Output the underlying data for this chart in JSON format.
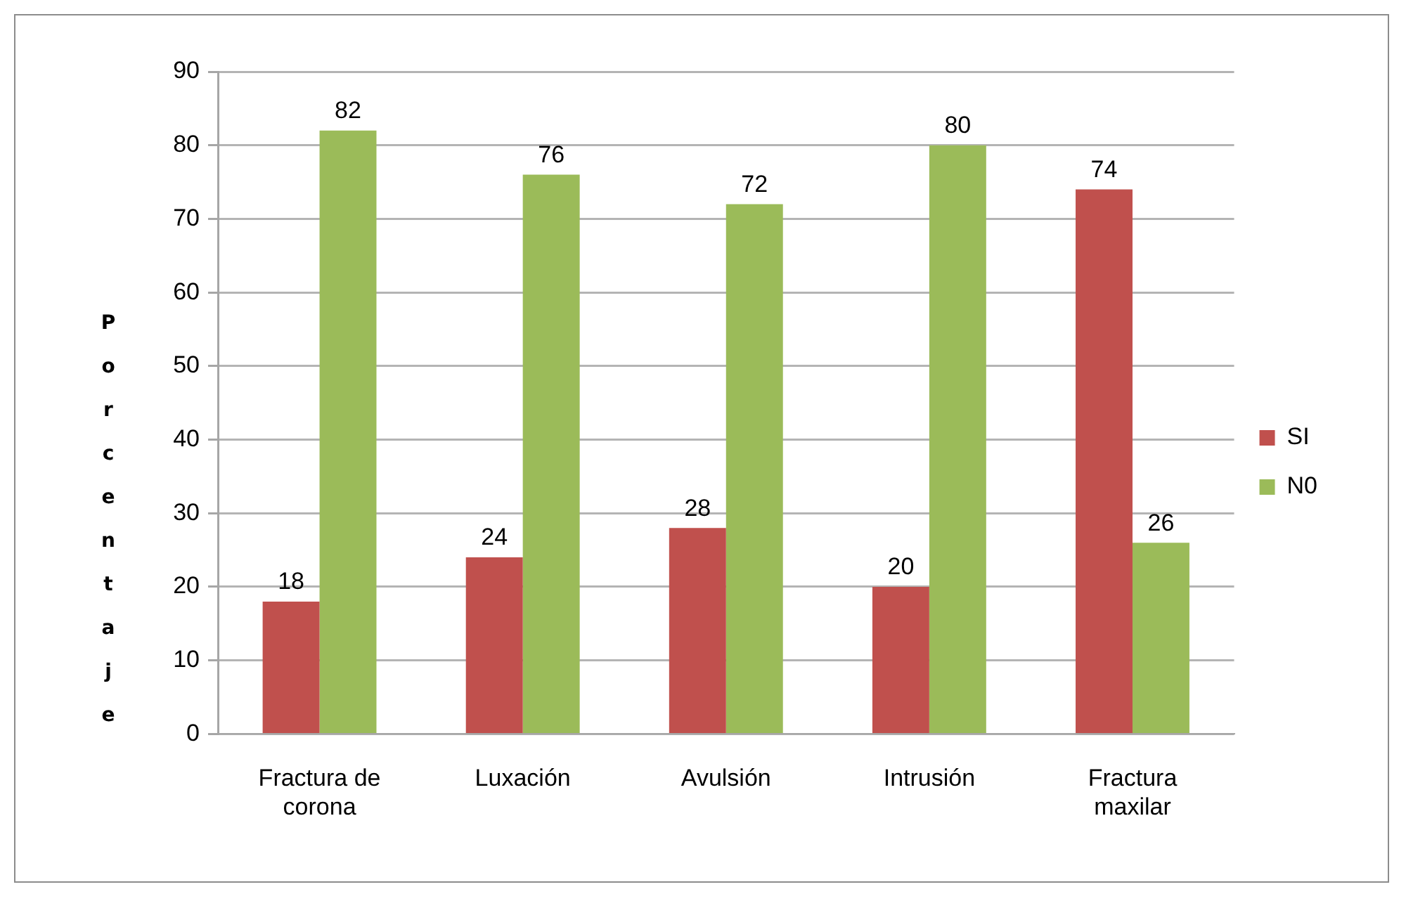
{
  "chart_data": {
    "type": "bar",
    "ylabel": "Porcentaje",
    "categories": [
      "Fractura de corona",
      "Luxación",
      "Avulsión",
      "Intrusión",
      "Fractura maxilar"
    ],
    "series": [
      {
        "name": "SI",
        "color": "#c0504d",
        "values": [
          18,
          24,
          28,
          20,
          74
        ]
      },
      {
        "name": "N0",
        "color": "#9bbb59",
        "values": [
          82,
          76,
          72,
          80,
          26
        ]
      }
    ],
    "ylim": [
      0,
      90
    ],
    "yticks": [
      0,
      10,
      20,
      30,
      40,
      50,
      60,
      70,
      80,
      90
    ],
    "grid": "y",
    "legend": "right",
    "data_labels": true
  }
}
